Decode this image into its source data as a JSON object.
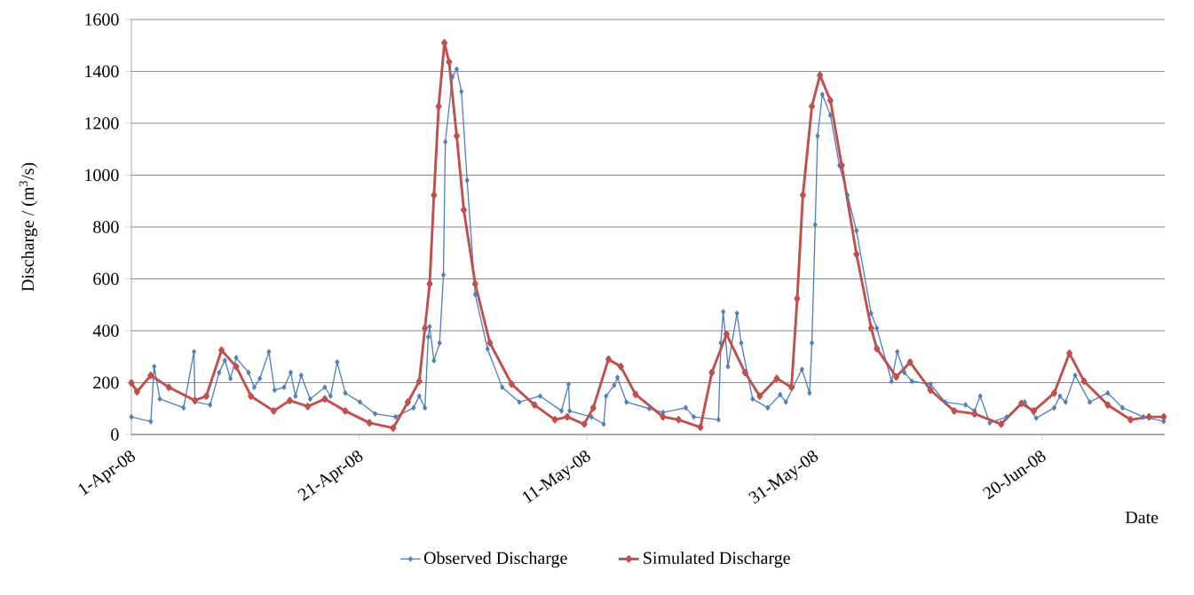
{
  "chart_data": {
    "type": "line",
    "ylabel": "Discharge / (m$^{3}$/s)",
    "xlabel": "Date",
    "xlim": [
      "2008-04-01",
      "2008-06-30T19:00"
    ],
    "ylim": [
      0,
      1600
    ],
    "yticks": [
      0,
      200,
      400,
      600,
      800,
      1000,
      1200,
      1400,
      1600
    ],
    "xticks": [
      {
        "value": "2008-04-01",
        "label": "1-Apr-08"
      },
      {
        "value": "2008-04-21",
        "label": "21-Apr-08"
      },
      {
        "value": "2008-05-11",
        "label": "11-May-08"
      },
      {
        "value": "2008-05-31",
        "label": "31-May-08"
      },
      {
        "value": "2008-06-20",
        "label": "20-Jun-08"
      }
    ],
    "grid": "y",
    "legend": "bottom",
    "marker": "diamond",
    "line_style": "solid",
    "series": [
      {
        "name": "Observed Discharge",
        "color": "#4f81bd",
        "x": [
          "2008-04-01",
          "2008-04-02T17:00",
          "2008-04-03",
          "2008-04-03T12:00",
          "2008-04-05T14:00",
          "2008-04-06T12:00",
          "2008-04-06T14:00",
          "2008-04-07T22:00",
          "2008-04-08T17:00",
          "2008-04-09T05:00",
          "2008-04-09T17:00",
          "2008-04-10T05:00",
          "2008-04-11T07:00",
          "2008-04-11T19:00",
          "2008-04-12T07:00",
          "2008-04-13T02:00",
          "2008-04-13T14:00",
          "2008-04-14T10:00",
          "2008-04-15",
          "2008-04-15T10:00",
          "2008-04-15T22:00",
          "2008-04-16T17:00",
          "2008-04-18",
          "2008-04-18T12:00",
          "2008-04-19T02:00",
          "2008-04-19T19:00",
          "2008-04-21T02:00",
          "2008-04-22T10:00",
          "2008-04-24T05:00",
          "2008-04-25T19:00",
          "2008-04-26T07:00",
          "2008-04-26T19:00",
          "2008-04-27T02:00",
          "2008-04-27T05:00",
          "2008-04-27T14:00",
          "2008-04-28T02:00",
          "2008-04-28T10:00",
          "2008-04-28T14:00",
          "2008-04-29T05:00",
          "2008-04-29T14:00",
          "2008-04-30",
          "2008-04-30T12:00",
          "2008-05-01T05:00",
          "2008-05-02T07:00",
          "2008-05-03T14:00",
          "2008-05-05T02:00",
          "2008-05-06T22:00",
          "2008-05-08T19:00",
          "2008-05-09T10:00",
          "2008-05-09T12:00",
          "2008-05-11T10:00",
          "2008-05-12T12:00",
          "2008-05-12T17:00",
          "2008-05-13T10:00",
          "2008-05-13T17:00",
          "2008-05-14T12:00",
          "2008-05-16T12:00",
          "2008-05-17T17:00",
          "2008-05-19T17:00",
          "2008-05-20T10:00",
          "2008-05-22T14:00",
          "2008-05-22T19:00",
          "2008-05-23",
          "2008-05-23T10:00",
          "2008-05-24T05:00",
          "2008-05-24T14:00",
          "2008-05-25T14:00",
          "2008-05-26T22:00",
          "2008-05-28",
          "2008-05-28T12:00",
          "2008-05-29T22:00",
          "2008-05-30T14:00",
          "2008-05-30T19:00",
          "2008-05-31T02:00",
          "2008-05-31T07:00",
          "2008-05-31T17:00",
          "2008-06-01T10:00",
          "2008-06-02T05:00",
          "2008-06-02T22:00",
          "2008-06-03T17:00",
          "2008-06-05",
          "2008-06-05T12:00",
          "2008-06-06T19:00",
          "2008-06-07T07:00",
          "2008-06-07T22:00",
          "2008-06-08T14:00",
          "2008-06-10T05:00",
          "2008-06-11T12:00",
          "2008-06-13T07:00",
          "2008-06-14T02:00",
          "2008-06-14T14:00",
          "2008-06-15T10:00",
          "2008-06-16T22:00",
          "2008-06-18T12:00",
          "2008-06-19T12:00",
          "2008-06-21T02:00",
          "2008-06-21T14:00",
          "2008-06-22T02:00",
          "2008-06-22T22:00",
          "2008-06-24T05:00",
          "2008-06-25T19:00",
          "2008-06-27T02:00",
          "2008-06-28T22:00",
          "2008-06-30T17:00"
        ],
        "values": [
          68,
          50,
          262,
          137,
          103,
          319,
          126,
          114,
          239,
          285,
          216,
          296,
          239,
          182,
          216,
          319,
          171,
          182,
          239,
          148,
          228,
          137,
          182,
          148,
          279,
          160,
          125,
          80,
          68,
          103,
          148,
          103,
          376,
          416,
          285,
          353,
          615,
          1128,
          1379,
          1408,
          1322,
          980,
          540,
          330,
          182,
          125,
          148,
          91,
          194,
          91,
          68,
          40,
          148,
          190,
          220,
          125,
          100,
          85,
          103,
          68,
          57,
          353,
          473,
          262,
          467,
          353,
          137,
          103,
          154,
          125,
          251,
          160,
          353,
          809,
          1151,
          1311,
          1231,
          1037,
          923,
          786,
          467,
          410,
          205,
          319,
          239,
          205,
          194,
          125,
          114,
          91,
          148,
          45,
          68,
          125,
          63,
          103,
          148,
          125,
          228,
          125,
          160,
          103,
          68,
          51
        ]
      },
      {
        "name": "Simulated Discharge",
        "color": "#c0504d",
        "x": [
          "2008-04-01",
          "2008-04-01T12:00",
          "2008-04-02T17:00",
          "2008-04-04T07:00",
          "2008-04-06T14:00",
          "2008-04-07T14:00",
          "2008-04-08T22:00",
          "2008-04-10T05:00",
          "2008-04-11T12:00",
          "2008-04-13T12:00",
          "2008-04-14T22:00",
          "2008-04-16T12:00",
          "2008-04-18",
          "2008-04-19T19:00",
          "2008-04-21T22:00",
          "2008-04-24",
          "2008-04-25T07:00",
          "2008-04-26T07:00",
          "2008-04-26T19:00",
          "2008-04-27T05:00",
          "2008-04-27T14:00",
          "2008-04-28",
          "2008-04-28T12:00",
          "2008-04-28T22:00",
          "2008-04-29T14:00",
          "2008-04-30T05:00",
          "2008-05-01T05:00",
          "2008-05-02T12:00",
          "2008-05-04T10:00",
          "2008-05-06T10:00",
          "2008-05-08T05:00",
          "2008-05-09T07:00",
          "2008-05-10T19:00",
          "2008-05-11T14:00",
          "2008-05-12T22:00",
          "2008-05-14",
          "2008-05-15T07:00",
          "2008-05-17T17:00",
          "2008-05-19T02:00",
          "2008-05-21",
          "2008-05-22",
          "2008-05-23T07:00",
          "2008-05-24T22:00",
          "2008-05-26T05:00",
          "2008-05-27T17:00",
          "2008-05-29",
          "2008-05-29T12:00",
          "2008-05-30",
          "2008-05-30T19:00",
          "2008-05-31T12:00",
          "2008-06-01T10:00",
          "2008-06-02T10:00",
          "2008-06-03T17:00",
          "2008-06-05",
          "2008-06-05T12:00",
          "2008-06-07T05:00",
          "2008-06-08T10:00",
          "2008-06-10T05:00",
          "2008-06-12T07:00",
          "2008-06-14T02:00",
          "2008-06-16T10:00",
          "2008-06-18T05:00",
          "2008-06-19T07:00",
          "2008-06-21T02:00",
          "2008-06-22T10:00",
          "2008-06-23T17:00",
          "2008-06-25T19:00",
          "2008-06-27T19:00",
          "2008-06-29T10:00",
          "2008-06-30T17:00"
        ],
        "values": [
          199,
          165,
          228,
          182,
          131,
          148,
          325,
          262,
          148,
          91,
          131,
          108,
          137,
          91,
          45,
          25,
          125,
          205,
          410,
          581,
          923,
          1265,
          1510,
          1436,
          1151,
          866,
          581,
          353,
          194,
          114,
          57,
          68,
          40,
          103,
          290,
          262,
          155,
          68,
          57,
          28,
          239,
          387,
          239,
          148,
          216,
          182,
          524,
          923,
          1265,
          1385,
          1288,
          1037,
          695,
          410,
          331,
          222,
          279,
          171,
          91,
          80,
          40,
          120,
          91,
          160,
          313,
          205,
          114,
          57,
          68,
          68
        ]
      }
    ]
  }
}
